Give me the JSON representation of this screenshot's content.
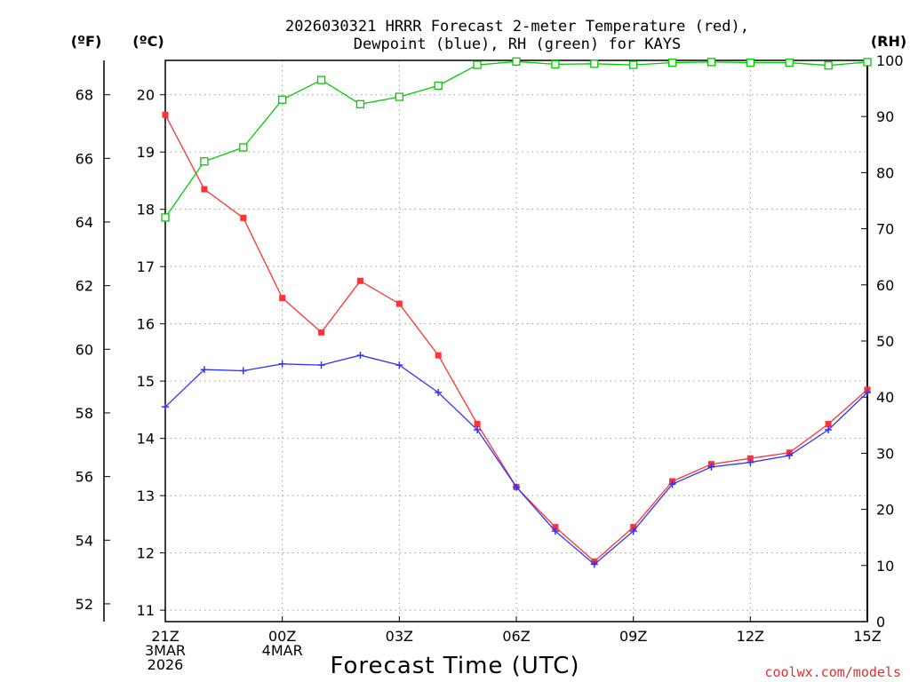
{
  "chart_data": {
    "type": "line",
    "title_line1": "2026030321 HRRR Forecast 2-meter Temperature (red),",
    "title_line2": "Dewpoint (blue), RH (green) for KAYS",
    "xlabel": "Forecast Time (UTC)",
    "credit": "coolwx.com/models",
    "unit_f": "(ºF)",
    "unit_c": "(ºC)",
    "unit_rh": "(RH)",
    "x": [
      0,
      1,
      2,
      3,
      4,
      5,
      6,
      7,
      8,
      9,
      10,
      11,
      12,
      13,
      14,
      15,
      16,
      17,
      18
    ],
    "xlim": [
      0,
      18
    ],
    "x_ticks": [
      {
        "hour": 0,
        "lines": [
          "21Z",
          "3MAR",
          "2026"
        ]
      },
      {
        "hour": 3,
        "lines": [
          "00Z",
          "4MAR"
        ]
      },
      {
        "hour": 6,
        "lines": [
          "03Z"
        ]
      },
      {
        "hour": 9,
        "lines": [
          "06Z"
        ]
      },
      {
        "hour": 12,
        "lines": [
          "09Z"
        ]
      },
      {
        "hour": 15,
        "lines": [
          "12Z"
        ]
      },
      {
        "hour": 18,
        "lines": [
          "15Z"
        ]
      }
    ],
    "ylim_c": [
      10.8,
      20.6
    ],
    "ylim_rh": [
      0,
      100
    ],
    "ticks_c": [
      11,
      12,
      13,
      14,
      15,
      16,
      17,
      18,
      19,
      20
    ],
    "ticks_f": [
      52,
      54,
      56,
      58,
      60,
      62,
      64,
      66,
      68
    ],
    "ticks_rh": [
      0,
      10,
      20,
      30,
      40,
      50,
      60,
      70,
      80,
      90,
      100
    ],
    "series": [
      {
        "name": "2-meter Temperature",
        "unit": "C",
        "color": "#ff3333",
        "marker": "square-filled",
        "values": [
          19.65,
          18.35,
          17.85,
          16.45,
          15.85,
          16.75,
          16.35,
          15.45,
          14.25,
          13.15,
          12.45,
          11.85,
          12.45,
          13.25,
          13.55,
          13.65,
          13.75,
          14.25,
          14.85
        ]
      },
      {
        "name": "Dewpoint",
        "unit": "C",
        "color": "#3333ff",
        "marker": "plus",
        "values": [
          14.55,
          15.2,
          15.18,
          15.3,
          15.28,
          15.45,
          15.28,
          14.8,
          14.15,
          13.15,
          12.38,
          11.8,
          12.38,
          13.2,
          13.5,
          13.58,
          13.7,
          14.15,
          14.8
        ]
      },
      {
        "name": "RH",
        "unit": "%",
        "color": "#00cc00",
        "marker": "square-open",
        "values": [
          72,
          82,
          84.5,
          93,
          96.5,
          92.2,
          93.5,
          95.5,
          99.2,
          99.8,
          99.3,
          99.4,
          99.2,
          99.6,
          99.7,
          99.6,
          99.6,
          99.1,
          99.7
        ]
      }
    ]
  }
}
